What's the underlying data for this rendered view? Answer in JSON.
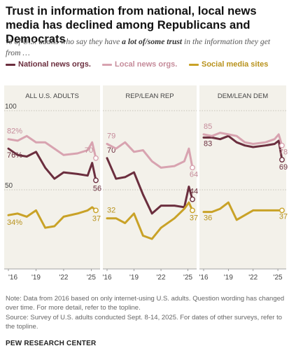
{
  "title": "Trust in information from national, local news media has declined among Republicans and Democrats",
  "subtitle": {
    "before": "% of U.S. adults who say they have ",
    "emphasis": "a lot of/some trust",
    "after": " in the information they get from …"
  },
  "colors": {
    "national": "#6b2e3e",
    "local": "#d8a3b0",
    "social": "#c9a227",
    "panel_bg": "#f3f1ea"
  },
  "note": "Note: Data from 2016 based on only internet-using U.S. adults. Question wording has changed over time. For more detail, refer to the topline.",
  "source": "Source: Survey of U.S. adults conducted Sept. 8-14, 2025. For dates of other surveys, refer to the topline.",
  "brand": "PEW RESEARCH CENTER",
  "chart_data": {
    "type": "line",
    "y_ticks": [
      "100",
      "50"
    ],
    "ylim": [
      0,
      100
    ],
    "xlim": [
      2016,
      2025.5
    ],
    "x_tick_labels": [
      "'16",
      "'19",
      "'22",
      "'25"
    ],
    "legend": [
      {
        "key": "national",
        "label": "National news orgs."
      },
      {
        "key": "local",
        "label": "Local news orgs."
      },
      {
        "key": "social",
        "label": "Social media sites"
      }
    ],
    "legend_placement": "top",
    "panels": [
      {
        "name": "ALL U.S. ADULTS",
        "series": [
          {
            "key": "national",
            "x": [
              2016,
              2017,
              2018,
              2019,
              2020,
              2021,
              2022,
              2023.5,
              2024.6,
              2025.1,
              2025.5
            ],
            "y": [
              76,
              72,
              71,
              74,
              64,
              57,
              61,
              60,
              59,
              67,
              56
            ],
            "start_label": "76%",
            "end_label": "56"
          },
          {
            "key": "local",
            "x": [
              2016,
              2017,
              2018,
              2019,
              2020,
              2021,
              2022,
              2023.5,
              2024.6,
              2025.1,
              2025.5
            ],
            "y": [
              82,
              81,
              84,
              80,
              80,
              76,
              72,
              73,
              75,
              80,
              70
            ],
            "start_label": "82%",
            "end_label": "70"
          },
          {
            "key": "social",
            "x": [
              2016,
              2017,
              2018,
              2019,
              2020,
              2021,
              2022,
              2023.5,
              2024.6,
              2025.1,
              2025.5
            ],
            "y": [
              34,
              35,
              33,
              37,
              26,
              27,
              33,
              35,
              37,
              39,
              37
            ],
            "start_label": "34%",
            "end_label": "37"
          }
        ]
      },
      {
        "name": "REP/LEAN REP",
        "series": [
          {
            "key": "national",
            "x": [
              2016,
              2017,
              2018,
              2019,
              2020,
              2021,
              2022,
              2023.5,
              2024.6,
              2025.1,
              2025.5
            ],
            "y": [
              70,
              57,
              58,
              61,
              47,
              35,
              40,
              40,
              39,
              52,
              44
            ],
            "start_label": "70",
            "end_label": "44"
          },
          {
            "key": "local",
            "x": [
              2016,
              2017,
              2018,
              2019,
              2020,
              2021,
              2022,
              2023.5,
              2024.6,
              2025.1,
              2025.5
            ],
            "y": [
              79,
              76,
              80,
              74,
              75,
              68,
              64,
              65,
              68,
              76,
              64
            ],
            "start_label": "79",
            "end_label": "64"
          },
          {
            "key": "social",
            "x": [
              2016,
              2017,
              2018,
              2019,
              2020,
              2021,
              2022,
              2023.5,
              2024.6,
              2025.1,
              2025.5
            ],
            "y": [
              32,
              32,
              29,
              35,
              21,
              19,
              26,
              32,
              38,
              42,
              37
            ],
            "start_label": "32",
            "end_label": "37"
          }
        ]
      },
      {
        "name": "DEM/LEAN DEM",
        "series": [
          {
            "key": "national",
            "x": [
              2016,
              2017,
              2018,
              2019,
              2020,
              2021,
              2022,
              2023.5,
              2024.6,
              2025.1,
              2025.5
            ],
            "y": [
              83,
              83,
              82,
              84,
              80,
              78,
              77,
              78,
              79,
              81,
              69
            ],
            "start_label": "83",
            "end_label": "69"
          },
          {
            "key": "local",
            "x": [
              2016,
              2017,
              2018,
              2019,
              2020,
              2021,
              2022,
              2023.5,
              2024.6,
              2025.1,
              2025.5
            ],
            "y": [
              85,
              84,
              86,
              85,
              84,
              80,
              79,
              80,
              82,
              85,
              78
            ],
            "start_label": "85",
            "end_label": "78"
          },
          {
            "key": "social",
            "x": [
              2016,
              2017,
              2018,
              2019,
              2020,
              2021,
              2022,
              2023.5,
              2024.6,
              2025.1,
              2025.5
            ],
            "y": [
              36,
              36,
              38,
              42,
              31,
              34,
              37,
              37,
              37,
              37,
              37
            ],
            "start_label": "36",
            "end_label": "37"
          }
        ]
      }
    ]
  }
}
